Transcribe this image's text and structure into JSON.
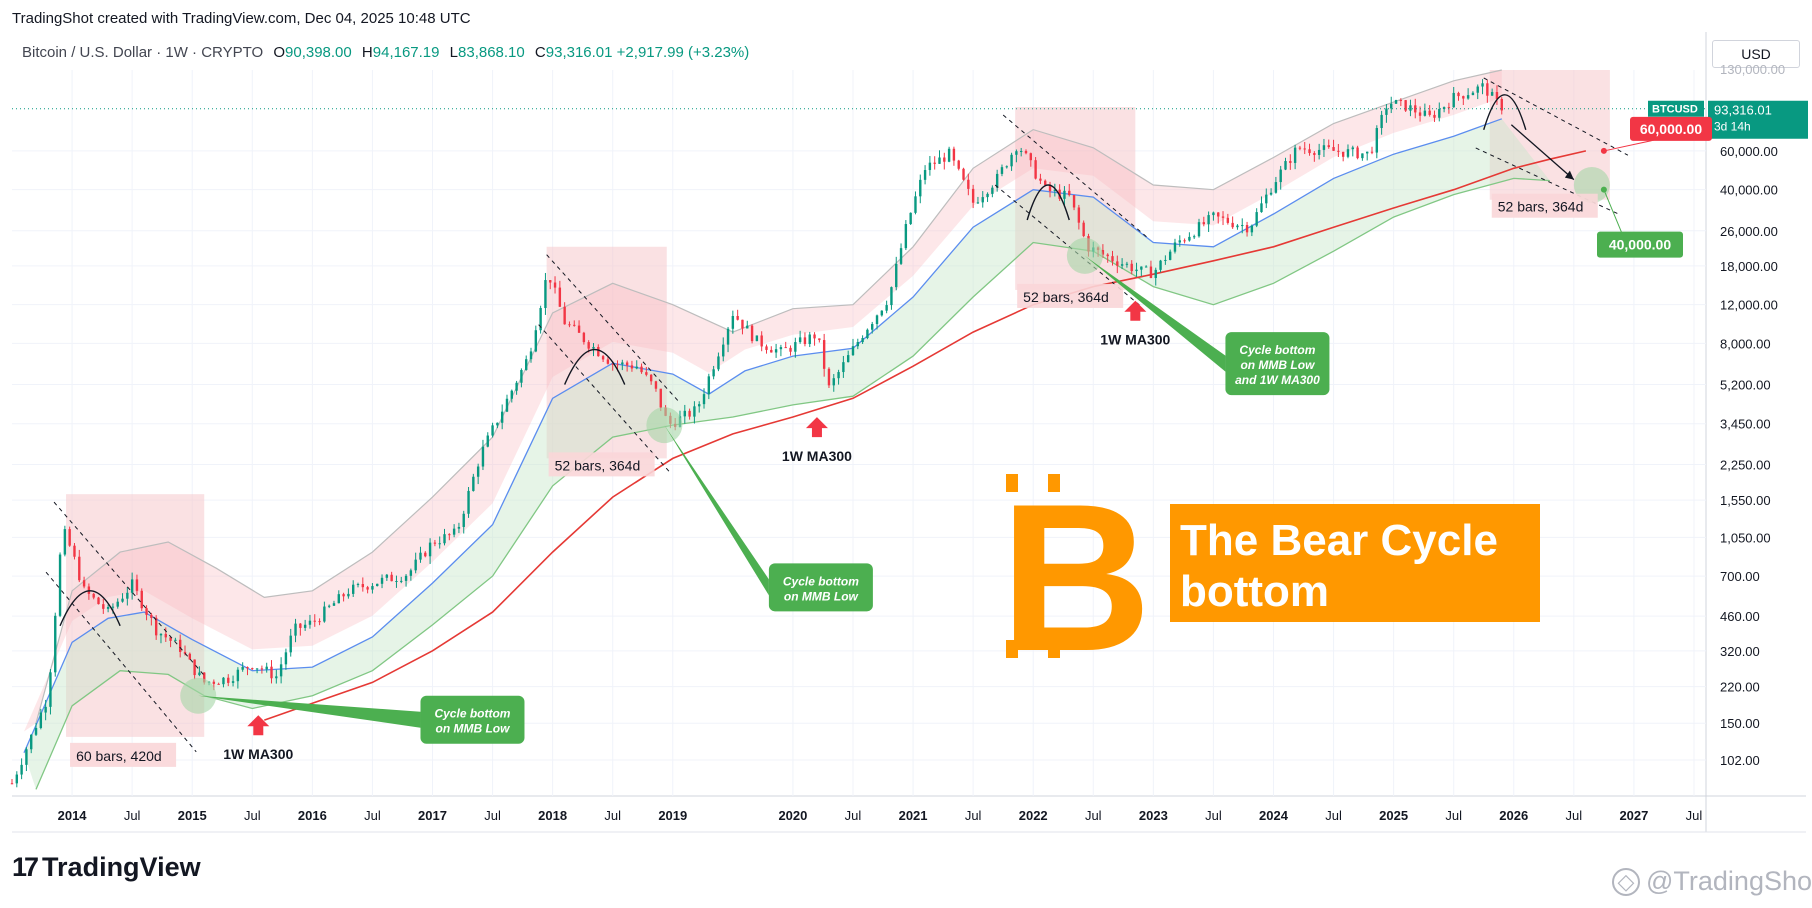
{
  "header": {
    "created_line": "TradingShot created with TradingView.com, Dec 04, 2025 10:48 UTC",
    "symbol": "Bitcoin / U.S. Dollar · 1W · CRYPTO",
    "ohlc": [
      {
        "label": "O",
        "value": "90,398.00"
      },
      {
        "label": "H",
        "value": "94,167.19"
      },
      {
        "label": "L",
        "value": "83,868.10"
      },
      {
        "label": "C",
        "value": "93,316.01"
      }
    ],
    "change": "+2,917.99 (+3.23%)"
  },
  "currency_button": "USD",
  "price_axis": {
    "ticks": [
      "102.00",
      "150.00",
      "220.00",
      "320.00",
      "460.00",
      "700.00",
      "1,050.00",
      "1,550.00",
      "2,250.00",
      "3,450.00",
      "5,200.00",
      "8,000.00",
      "12,000.00",
      "18,000.00",
      "26,000.00",
      "40,000.00",
      "60,000.00"
    ],
    "ticks_values": [
      102,
      150,
      220,
      320,
      460,
      700,
      1050,
      1550,
      2250,
      3450,
      5200,
      8000,
      12000,
      18000,
      26000,
      40000,
      60000
    ],
    "top_tick": "130,000.00",
    "price_tag": {
      "symbol": "BTCUSD",
      "price": "93,316.01",
      "countdown": "3d 14h"
    },
    "target_red": "60,000.00",
    "target_green": "40,000.00"
  },
  "time_axis": {
    "labels": [
      "2014",
      "Jul",
      "2015",
      "Jul",
      "2016",
      "Jul",
      "2017",
      "Jul",
      "2018",
      "Jul",
      "2019",
      "2020",
      "Jul",
      "2021",
      "Jul",
      "2022",
      "Jul",
      "2023",
      "Jul",
      "2024",
      "Jul",
      "2025",
      "Jul",
      "2026",
      "Jul",
      "2027",
      "Jul"
    ],
    "label_times": [
      2014.0,
      2014.5,
      2015.0,
      2015.5,
      2016.0,
      2016.5,
      2017.0,
      2017.5,
      2018.0,
      2018.5,
      2019.0,
      2020.0,
      2020.5,
      2021.0,
      2021.5,
      2022.0,
      2022.5,
      2023.0,
      2023.5,
      2024.0,
      2024.5,
      2025.0,
      2025.5,
      2026.0,
      2026.5,
      2027.0,
      2027.5
    ]
  },
  "chart_data": {
    "type": "line",
    "title": "",
    "xlabel": "",
    "ylabel": "",
    "y_scale": "log",
    "ylim": [
      70,
      140000
    ],
    "xlim": [
      2013.5,
      2027.6
    ],
    "grid": true,
    "colors": {
      "price_up": "#089981",
      "price_down": "#f23645",
      "ma300": "#e53935",
      "mmb_mid": "#5b8def",
      "mmb_low": "#81c784",
      "mmb_high": "#bdbdbd",
      "accent_orange": "#ff9800",
      "callout_green": "#4caf50",
      "label_pink": "#f9d6d8"
    },
    "series": [
      {
        "key": "price",
        "x": [
          2013.5,
          2013.8,
          2013.92,
          2014.0,
          2014.1,
          2014.3,
          2014.5,
          2014.7,
          2014.9,
          2015.0,
          2015.1,
          2015.3,
          2015.5,
          2015.7,
          2015.85,
          2016.0,
          2016.3,
          2016.5,
          2016.8,
          2017.0,
          2017.2,
          2017.4,
          2017.6,
          2017.8,
          2017.96,
          2018.1,
          2018.3,
          2018.5,
          2018.7,
          2018.85,
          2018.96,
          2019.2,
          2019.5,
          2019.7,
          2019.9,
          2020.2,
          2020.3,
          2020.6,
          2020.8,
          2020.95,
          2021.1,
          2021.3,
          2021.5,
          2021.7,
          2021.87,
          2022.1,
          2022.3,
          2022.45,
          2022.6,
          2022.9,
          2023.0,
          2023.2,
          2023.5,
          2023.8,
          2024.0,
          2024.2,
          2024.5,
          2024.8,
          2024.95,
          2025.1,
          2025.3,
          2025.5,
          2025.75,
          2025.85,
          2025.93
        ],
        "values": [
          80,
          200,
          1150,
          900,
          600,
          480,
          640,
          400,
          330,
          270,
          230,
          240,
          280,
          245,
          400,
          430,
          600,
          650,
          720,
          1000,
          1100,
          2500,
          4200,
          7000,
          17000,
          10000,
          8000,
          6500,
          6300,
          5000,
          3400,
          4000,
          11000,
          8200,
          7300,
          8800,
          5000,
          9200,
          13000,
          28000,
          50000,
          58000,
          35000,
          45000,
          65000,
          40000,
          37000,
          22000,
          20000,
          17000,
          16800,
          23000,
          30000,
          27000,
          43000,
          62000,
          60000,
          58000,
          100000,
          96000,
          85000,
          105000,
          118000,
          100000,
          93316
        ]
      },
      {
        "key": "ma300_1w",
        "x": [
          2015.6,
          2016.0,
          2016.5,
          2017.0,
          2017.5,
          2018.0,
          2018.5,
          2019.0,
          2019.5,
          2020.0,
          2020.5,
          2021.0,
          2021.5,
          2022.0,
          2022.5,
          2023.0,
          2023.5,
          2024.0,
          2024.5,
          2025.0,
          2025.5,
          2026.0,
          2026.3,
          2026.6
        ],
        "values": [
          155,
          185,
          230,
          320,
          480,
          900,
          1600,
          2400,
          3100,
          3700,
          4500,
          6300,
          9000,
          12000,
          14500,
          16500,
          19000,
          22000,
          27000,
          33000,
          40000,
          50000,
          55000,
          60000
        ]
      },
      {
        "key": "mmb_mid",
        "x": [
          2013.6,
          2014.0,
          2014.3,
          2014.6,
          2015.0,
          2015.5,
          2016.0,
          2016.5,
          2017.0,
          2017.5,
          2018.0,
          2018.5,
          2019.0,
          2019.3,
          2019.6,
          2020.0,
          2020.5,
          2021.0,
          2021.5,
          2022.0,
          2022.5,
          2023.0,
          2023.5,
          2024.0,
          2024.5,
          2025.0,
          2025.5,
          2025.9
        ],
        "values": [
          110,
          350,
          450,
          480,
          360,
          260,
          270,
          370,
          650,
          1200,
          4500,
          6500,
          5800,
          4700,
          6000,
          7000,
          7600,
          13000,
          27000,
          40000,
          37000,
          23000,
          22000,
          31000,
          45000,
          58000,
          70000,
          84000
        ]
      },
      {
        "key": "mmb_low",
        "x": [
          2013.7,
          2014.0,
          2014.4,
          2014.8,
          2015.1,
          2015.5,
          2016.0,
          2016.5,
          2017.0,
          2017.5,
          2018.0,
          2018.5,
          2019.0,
          2019.5,
          2020.0,
          2020.5,
          2021.0,
          2021.5,
          2022.0,
          2022.5,
          2023.0,
          2023.5,
          2024.0,
          2024.5,
          2025.0,
          2025.5,
          2026.0,
          2026.3
        ],
        "values": [
          75,
          180,
          260,
          250,
          200,
          175,
          200,
          260,
          420,
          700,
          1800,
          3000,
          3400,
          3700,
          4200,
          4600,
          7000,
          13000,
          23000,
          21000,
          14500,
          12000,
          15000,
          21000,
          30000,
          38000,
          45000,
          44000
        ]
      },
      {
        "key": "mmb_high",
        "x": [
          2013.7,
          2014.0,
          2014.4,
          2014.8,
          2015.2,
          2015.6,
          2016.0,
          2016.5,
          2017.0,
          2017.5,
          2018.0,
          2018.5,
          2019.0,
          2019.5,
          2020.0,
          2020.5,
          2021.0,
          2021.5,
          2022.0,
          2022.5,
          2023.0,
          2023.5,
          2024.0,
          2024.5,
          2025.0,
          2025.5,
          2025.9
        ],
        "values": [
          150,
          600,
          900,
          1000,
          760,
          560,
          600,
          900,
          1600,
          3000,
          11000,
          15000,
          12000,
          9000,
          11500,
          12000,
          22000,
          50000,
          75000,
          62000,
          42000,
          40000,
          56000,
          80000,
          100000,
          125000,
          140000
        ]
      }
    ],
    "cycles": [
      {
        "label": "60 bars, 420d",
        "box_x": [
          2013.95,
          2015.1
        ],
        "box_y": [
          130,
          1650
        ],
        "channel_x": [
          2013.85,
          2015.1
        ],
        "bottom_x": 2015.05,
        "bottom_y": 200,
        "arc_x": [
          2013.9,
          2014.4
        ],
        "arc_y": 600
      },
      {
        "label": "52 bars, 364d",
        "box_x": [
          2017.95,
          2018.95
        ],
        "box_y": [
          2400,
          22000
        ],
        "channel_x": [
          2017.95,
          2019.05
        ],
        "bottom_x": 2018.93,
        "bottom_y": 3400,
        "arc_x": [
          2018.1,
          2018.6
        ],
        "arc_y": 7500
      },
      {
        "label": "52 bars, 364d",
        "box_x": [
          2021.85,
          2022.85
        ],
        "box_y": [
          14000,
          95000
        ],
        "channel_x": [
          2021.75,
          2022.95
        ],
        "bottom_x": 2022.43,
        "bottom_y": 20000,
        "arc_x": [
          2021.95,
          2022.3
        ],
        "arc_y": 42000
      },
      {
        "label": "52 bars, 364d",
        "box_x": [
          2025.8,
          2026.8
        ],
        "box_y": [
          36000,
          140000
        ],
        "channel_x": [
          2025.75,
          2026.95
        ],
        "bottom_x": 2026.65,
        "bottom_y": 42000,
        "arc_x": [
          2025.75,
          2026.1
        ],
        "arc_y": 108000
      }
    ],
    "annotations": {
      "ma300_labels": [
        {
          "text": "1W MA300",
          "x": 2015.55,
          "y": 150
        },
        {
          "text": "1W MA300",
          "x": 2020.2,
          "y": 3400
        },
        {
          "text": "1W MA300",
          "x": 2022.85,
          "y": 11500
        }
      ],
      "callouts": [
        {
          "lines": [
            "Cycle bottom",
            "on MMB Low"
          ],
          "x": 2016.9,
          "y": 200
        },
        {
          "lines": [
            "Cycle bottom",
            "on MMB Low"
          ],
          "x": 2019.8,
          "y": 800
        },
        {
          "lines": [
            "Cycle bottom",
            "on MMB Low",
            "and 1W MA300"
          ],
          "x": 2023.6,
          "y": 9000
        }
      ],
      "headline": [
        "The Bear Cycle",
        "bottom"
      ],
      "logo_glyph": "B"
    }
  },
  "footer": {
    "brand": "TradingView",
    "watermark": "@TradingShot"
  }
}
